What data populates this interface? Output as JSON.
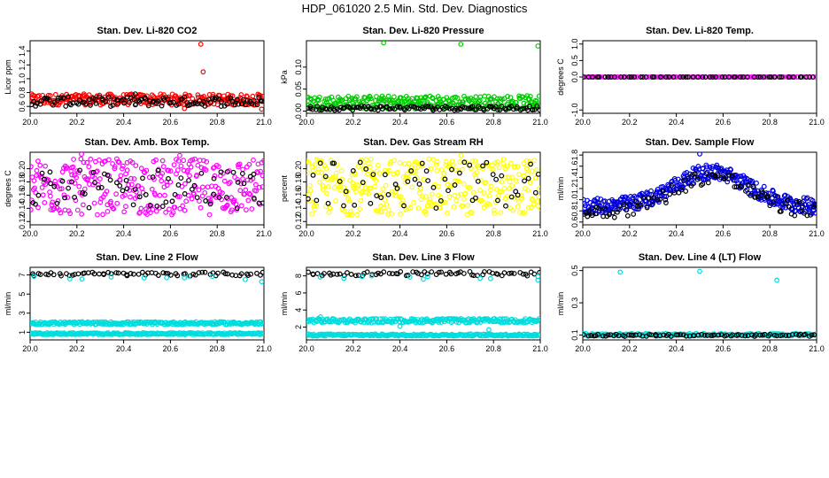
{
  "page": {
    "title": "HDP_061020  2.5 Min. Std. Dev. Diagnostics"
  },
  "chart_data": [
    {
      "type": "scatter",
      "title": "Stan. Dev. Li-820 CO2",
      "ylabel": "Licor ppm",
      "xlabel": "",
      "xlim": [
        20.0,
        21.0
      ],
      "ylim": [
        0.5,
        1.55
      ],
      "x_ticks": [
        "20.0",
        "20.2",
        "20.4",
        "20.6",
        "20.8",
        "21.0"
      ],
      "y_ticks": [
        "0.6",
        "0.8",
        "1.0",
        "1.2",
        "1.4"
      ],
      "series": [
        {
          "name": "red",
          "color": "#ff0000",
          "band": [
            0.62,
            0.78
          ],
          "count": 260,
          "outliers": [
            [
              20.73,
              1.5
            ],
            [
              20.74,
              1.1
            ],
            [
              20.99,
              0.56
            ],
            [
              20.66,
              0.57
            ]
          ]
        },
        {
          "name": "black",
          "color": "#000000",
          "band": [
            0.6,
            0.74
          ],
          "count": 110,
          "outliers": [
            [
              20.45,
              0.78
            ]
          ]
        }
      ]
    },
    {
      "type": "scatter",
      "title": "Stan. Dev. Li-820 Pressure",
      "ylabel": "kPa",
      "xlabel": "",
      "xlim": [
        20.0,
        21.0
      ],
      "ylim": [
        -0.005,
        0.16
      ],
      "x_ticks": [
        "20.0",
        "20.2",
        "20.4",
        "20.6",
        "20.8",
        "21.0"
      ],
      "y_ticks": [
        "0.00",
        "0.05",
        "0.10"
      ],
      "series": [
        {
          "name": "green",
          "color": "#00cc00",
          "band": [
            0.005,
            0.035
          ],
          "count": 300,
          "outliers": [
            [
              20.33,
              0.155
            ],
            [
              20.66,
              0.152
            ],
            [
              20.99,
              0.148
            ]
          ]
        },
        {
          "name": "black",
          "color": "#000000",
          "band": [
            0.002,
            0.012
          ],
          "count": 120,
          "outliers": []
        }
      ]
    },
    {
      "type": "scatter",
      "title": "Stan. Dev. Li-820 Temp.",
      "ylabel": "degrees C",
      "xlabel": "",
      "xlim": [
        20.0,
        21.0
      ],
      "ylim": [
        -1.1,
        1.1
      ],
      "x_ticks": [
        "20.0",
        "20.2",
        "20.4",
        "20.6",
        "20.8",
        "21.0"
      ],
      "y_ticks": [
        "-1.0",
        "0.0",
        "0.5",
        "1.0"
      ],
      "series": [
        {
          "name": "magenta",
          "color": "#ff00ff",
          "band": [
            0.0,
            0.0
          ],
          "count": 120,
          "outliers": []
        },
        {
          "name": "black",
          "color": "#000000",
          "band": [
            0.0,
            0.0
          ],
          "count": 60,
          "outliers": []
        }
      ]
    },
    {
      "type": "scatter",
      "title": "Stan. Dev. Amb. Box Temp.",
      "ylabel": "degrees C",
      "xlabel": "",
      "xlim": [
        20.0,
        21.0
      ],
      "ylim": [
        0.115,
        0.225
      ],
      "x_ticks": [
        "20.0",
        "20.2",
        "20.4",
        "20.6",
        "20.8",
        "21.0"
      ],
      "y_ticks": [
        "0.12",
        "0.14",
        "0.16",
        "0.18",
        "0.20"
      ],
      "series": [
        {
          "name": "magenta",
          "color": "#ff00ff",
          "band": [
            0.13,
            0.215
          ],
          "count": 320,
          "outliers": [
            [
              20.22,
              0.222
            ],
            [
              20.64,
              0.22
            ]
          ]
        },
        {
          "name": "black",
          "color": "#000000",
          "band": [
            0.14,
            0.2
          ],
          "count": 70,
          "outliers": []
        }
      ]
    },
    {
      "type": "scatter",
      "title": "Stan. Dev. Gas Stream RH",
      "ylabel": "percent",
      "xlabel": "",
      "xlim": [
        20.0,
        21.0
      ],
      "ylim": [
        0.115,
        0.225
      ],
      "x_ticks": [
        "20.0",
        "20.2",
        "20.4",
        "20.6",
        "20.8",
        "21.0"
      ],
      "y_ticks": [
        "0.12",
        "0.14",
        "0.16",
        "0.18",
        "0.20"
      ],
      "series": [
        {
          "name": "yellow",
          "color": "#ffff00",
          "band": [
            0.13,
            0.215
          ],
          "count": 340,
          "outliers": [
            [
              20.66,
              0.22
            ]
          ]
        },
        {
          "name": "black",
          "color": "#000000",
          "band": [
            0.14,
            0.21
          ],
          "count": 60,
          "outliers": []
        }
      ]
    },
    {
      "type": "scatter",
      "title": "Stan. Dev. Sample Flow",
      "ylabel": "ml/min",
      "xlabel": "",
      "xlim": [
        20.0,
        21.0
      ],
      "ylim": [
        0.55,
        1.85
      ],
      "x_ticks": [
        "20.0",
        "20.2",
        "20.4",
        "20.6",
        "20.8",
        "21.0"
      ],
      "y_ticks": [
        "0.6",
        "0.8",
        "1.0",
        "1.2",
        "1.4",
        "1.6",
        "1.8"
      ],
      "series": [
        {
          "name": "blue",
          "color": "#0000dd",
          "profile": "hump",
          "count": 380,
          "outliers": [
            [
              20.5,
              1.82
            ]
          ]
        },
        {
          "name": "black",
          "color": "#000000",
          "profile": "hump-low",
          "count": 90,
          "outliers": [
            [
              20.02,
              0.7
            ],
            [
              20.04,
              0.72
            ]
          ]
        }
      ]
    },
    {
      "type": "scatter",
      "title": "Stan. Dev. Line 2 Flow",
      "ylabel": "ml/min",
      "xlabel": "",
      "xlim": [
        20.0,
        21.0
      ],
      "ylim": [
        0.2,
        7.8
      ],
      "x_ticks": [
        "20.0",
        "20.2",
        "20.4",
        "20.6",
        "20.8",
        "21.0"
      ],
      "y_ticks": [
        "1",
        "3",
        "5",
        "7"
      ],
      "series": [
        {
          "name": "black",
          "color": "#000000",
          "band": [
            6.9,
            7.3
          ],
          "count": 70,
          "outliers": []
        },
        {
          "name": "cyan-top",
          "color": "#00dddd",
          "band": [
            6.5,
            7.0
          ],
          "count": 8,
          "outliers": [
            [
              20.17,
              6.6
            ],
            [
              20.66,
              6.7
            ],
            [
              20.99,
              6.3
            ]
          ]
        },
        {
          "name": "cyan-mid",
          "color": "#00dddd",
          "band": [
            1.8,
            2.1
          ],
          "count": 260,
          "outliers": []
        },
        {
          "name": "cyan-low",
          "color": "#00dddd",
          "band": [
            0.75,
            0.95
          ],
          "count": 260,
          "outliers": []
        }
      ]
    },
    {
      "type": "scatter",
      "title": "Stan. Dev. Line 3 Flow",
      "ylabel": "ml/min",
      "xlabel": "",
      "xlim": [
        20.0,
        21.0
      ],
      "ylim": [
        0.5,
        9.0
      ],
      "x_ticks": [
        "20.0",
        "20.2",
        "20.4",
        "20.6",
        "20.8",
        "21.0"
      ],
      "y_ticks": [
        "2",
        "4",
        "6",
        "8"
      ],
      "series": [
        {
          "name": "black",
          "color": "#000000",
          "band": [
            8.0,
            8.5
          ],
          "count": 70,
          "outliers": []
        },
        {
          "name": "cyan-top",
          "color": "#00dddd",
          "band": [
            7.6,
            8.1
          ],
          "count": 8,
          "outliers": [
            [
              20.16,
              7.7
            ],
            [
              20.5,
              7.6
            ],
            [
              20.99,
              7.5
            ]
          ]
        },
        {
          "name": "cyan-mid",
          "color": "#00dddd",
          "band": [
            2.5,
            3.0
          ],
          "count": 260,
          "outliers": [
            [
              20.06,
              3.2
            ],
            [
              20.4,
              2.1
            ],
            [
              20.78,
              1.7
            ]
          ]
        },
        {
          "name": "cyan-low",
          "color": "#00dddd",
          "band": [
            0.95,
            1.2
          ],
          "count": 260,
          "outliers": []
        }
      ]
    },
    {
      "type": "scatter",
      "title": "Stan. Dev. Line 4 (LT) Flow",
      "ylabel": "ml/min",
      "xlabel": "",
      "xlim": [
        20.0,
        21.0
      ],
      "ylim": [
        0.07,
        0.52
      ],
      "x_ticks": [
        "20.0",
        "20.2",
        "20.4",
        "20.6",
        "20.8",
        "21.0"
      ],
      "y_ticks": [
        "0.1",
        "0.3",
        "0.5"
      ],
      "series": [
        {
          "name": "cyan",
          "color": "#00dddd",
          "band": [
            0.095,
            0.11
          ],
          "count": 220,
          "outliers": [
            [
              20.16,
              0.49
            ],
            [
              20.5,
              0.495
            ],
            [
              20.83,
              0.44
            ]
          ]
        },
        {
          "name": "black",
          "color": "#000000",
          "band": [
            0.092,
            0.105
          ],
          "count": 80,
          "outliers": []
        }
      ]
    }
  ]
}
